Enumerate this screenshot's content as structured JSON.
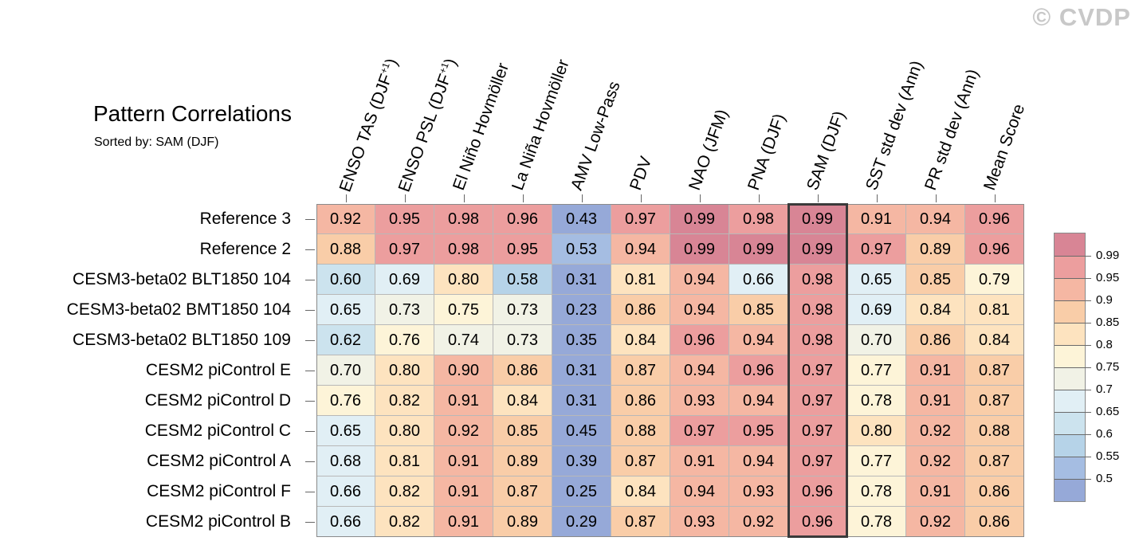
{
  "watermark": "© CVDP",
  "chart_data": {
    "type": "heatmap",
    "title": "Pattern Correlations",
    "subtitle": "Sorted by: SAM (DJF)",
    "columns": [
      "ENSO TAS (DJF+1)",
      "ENSO PSL (DJF+1)",
      "El Niño Hovmöller",
      "La Niña Hovmöller",
      "AMV Low-Pass",
      "PDV",
      "NAO (JFM)",
      "PNA (DJF)",
      "SAM (DJF)",
      "SST std dev (Ann)",
      "PR std dev (Ann)",
      "Mean Score"
    ],
    "highlighted_column": "SAM (DJF)",
    "rows": [
      {
        "label": "Reference 3",
        "values": [
          "0.92",
          "0.95",
          "0.98",
          "0.96",
          "0.43",
          "0.97",
          "0.99",
          "0.98",
          "0.99",
          "0.91",
          "0.94",
          "0.96"
        ]
      },
      {
        "label": "Reference 2",
        "values": [
          "0.88",
          "0.97",
          "0.98",
          "0.95",
          "0.53",
          "0.94",
          "0.99",
          "0.99",
          "0.99",
          "0.97",
          "0.89",
          "0.96"
        ]
      },
      {
        "label": "CESM3-beta02 BLT1850 104",
        "values": [
          "0.60",
          "0.69",
          "0.80",
          "0.58",
          "0.31",
          "0.81",
          "0.94",
          "0.66",
          "0.98",
          "0.65",
          "0.85",
          "0.79"
        ]
      },
      {
        "label": "CESM3-beta02 BMT1850 104",
        "values": [
          "0.65",
          "0.73",
          "0.75",
          "0.73",
          "0.23",
          "0.86",
          "0.94",
          "0.85",
          "0.98",
          "0.69",
          "0.84",
          "0.81"
        ]
      },
      {
        "label": "CESM3-beta02 BLT1850 109",
        "values": [
          "0.62",
          "0.76",
          "0.74",
          "0.73",
          "0.35",
          "0.84",
          "0.96",
          "0.94",
          "0.98",
          "0.70",
          "0.86",
          "0.84"
        ]
      },
      {
        "label": "CESM2 piControl E",
        "values": [
          "0.70",
          "0.80",
          "0.90",
          "0.86",
          "0.31",
          "0.87",
          "0.94",
          "0.96",
          "0.97",
          "0.77",
          "0.91",
          "0.87"
        ]
      },
      {
        "label": "CESM2 piControl D",
        "values": [
          "0.76",
          "0.82",
          "0.91",
          "0.84",
          "0.31",
          "0.86",
          "0.93",
          "0.94",
          "0.97",
          "0.78",
          "0.91",
          "0.87"
        ]
      },
      {
        "label": "CESM2 piControl C",
        "values": [
          "0.65",
          "0.80",
          "0.92",
          "0.85",
          "0.45",
          "0.88",
          "0.97",
          "0.95",
          "0.97",
          "0.80",
          "0.92",
          "0.88"
        ]
      },
      {
        "label": "CESM2 piControl A",
        "values": [
          "0.68",
          "0.81",
          "0.91",
          "0.89",
          "0.39",
          "0.87",
          "0.91",
          "0.94",
          "0.97",
          "0.77",
          "0.92",
          "0.87"
        ]
      },
      {
        "label": "CESM2 piControl F",
        "values": [
          "0.66",
          "0.82",
          "0.91",
          "0.87",
          "0.25",
          "0.84",
          "0.94",
          "0.93",
          "0.96",
          "0.78",
          "0.91",
          "0.86"
        ]
      },
      {
        "label": "CESM2 piControl B",
        "values": [
          "0.66",
          "0.82",
          "0.91",
          "0.89",
          "0.29",
          "0.87",
          "0.93",
          "0.92",
          "0.96",
          "0.78",
          "0.92",
          "0.86"
        ]
      }
    ],
    "colorbar": {
      "levels": [
        "0.99",
        "0.95",
        "0.9",
        "0.85",
        "0.8",
        "0.75",
        "0.7",
        "0.65",
        "0.6",
        "0.55",
        "0.5"
      ],
      "colors": [
        "#d88595",
        "#ec9e9e",
        "#f5b7a3",
        "#f9cda8",
        "#fde3bf",
        "#fdf4d8",
        "#f1f2e6",
        "#e1eff5",
        "#cce3ee",
        "#b6d3e8",
        "#a5bde2",
        "#96a9d8"
      ]
    }
  }
}
